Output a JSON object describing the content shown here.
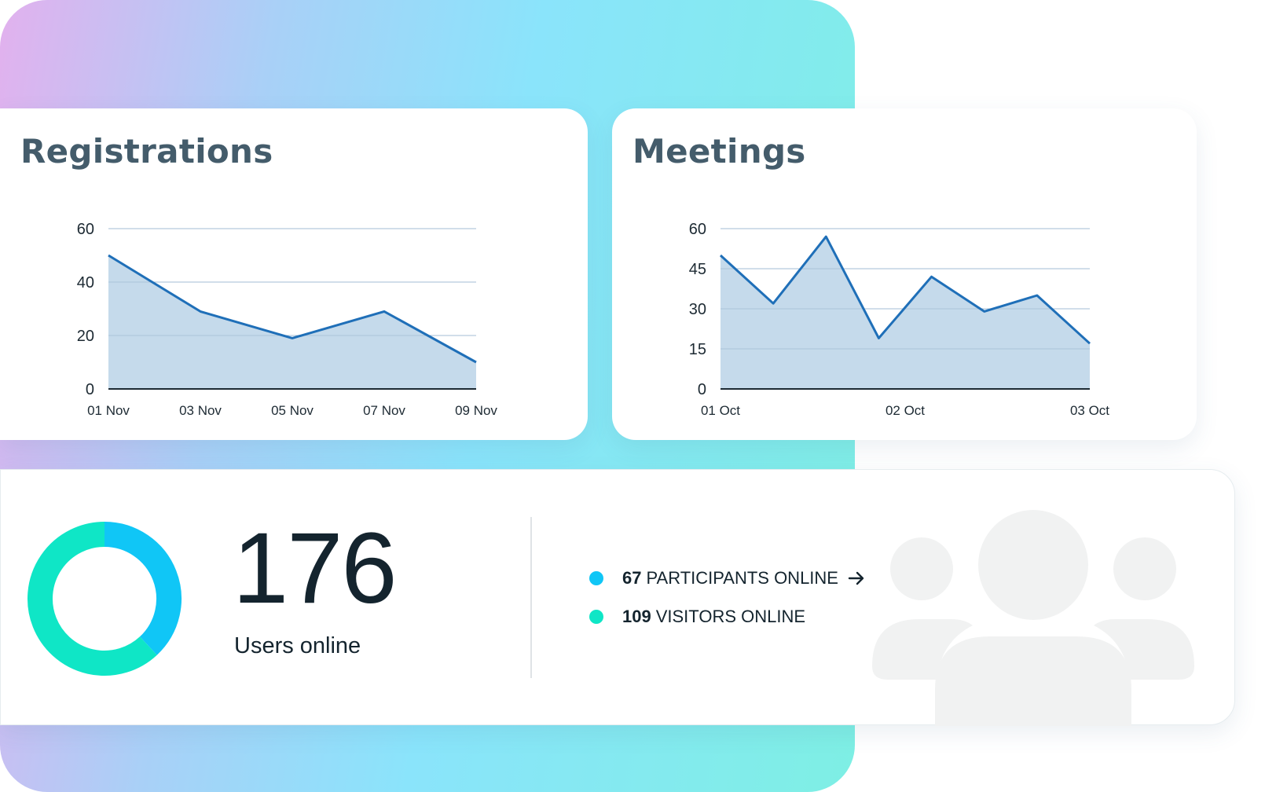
{
  "registrations": {
    "title": "Registrations",
    "chart_data": {
      "type": "area",
      "x": [
        "01 Nov",
        "03 Nov",
        "05 Nov",
        "07 Nov",
        "09 Nov"
      ],
      "values": [
        50,
        29,
        19,
        29,
        10
      ],
      "ylim": [
        0,
        60
      ],
      "yticks": [
        "0",
        "20",
        "40",
        "60"
      ],
      "grid": true,
      "line_color": "#1f6fb8",
      "fill_color": "#c2d8ea"
    }
  },
  "meetings": {
    "title": "Meetings",
    "chart_data": {
      "type": "area",
      "x_labels": [
        "01 Oct",
        "02 Oct",
        "03 Oct"
      ],
      "values": [
        50,
        32,
        57,
        19,
        42,
        29,
        35,
        17
      ],
      "ylim": [
        0,
        60
      ],
      "yticks": [
        "0",
        "15",
        "30",
        "45",
        "60"
      ],
      "grid": true,
      "line_color": "#1f6fb8",
      "fill_color": "#c2d8ea"
    }
  },
  "users": {
    "count": "176",
    "label": "Users online",
    "participants": {
      "count": "67",
      "label": "PARTICIPANTS ONLINE"
    },
    "visitors": {
      "count": "109",
      "label": "VISITORS ONLINE"
    },
    "donut": {
      "segments": [
        {
          "value": 67,
          "color": "#10c6f6"
        },
        {
          "value": 109,
          "color": "#0fe6c6"
        }
      ]
    }
  },
  "icons": {
    "arrow": "arrow-right-icon",
    "people": "users-group-icon"
  }
}
